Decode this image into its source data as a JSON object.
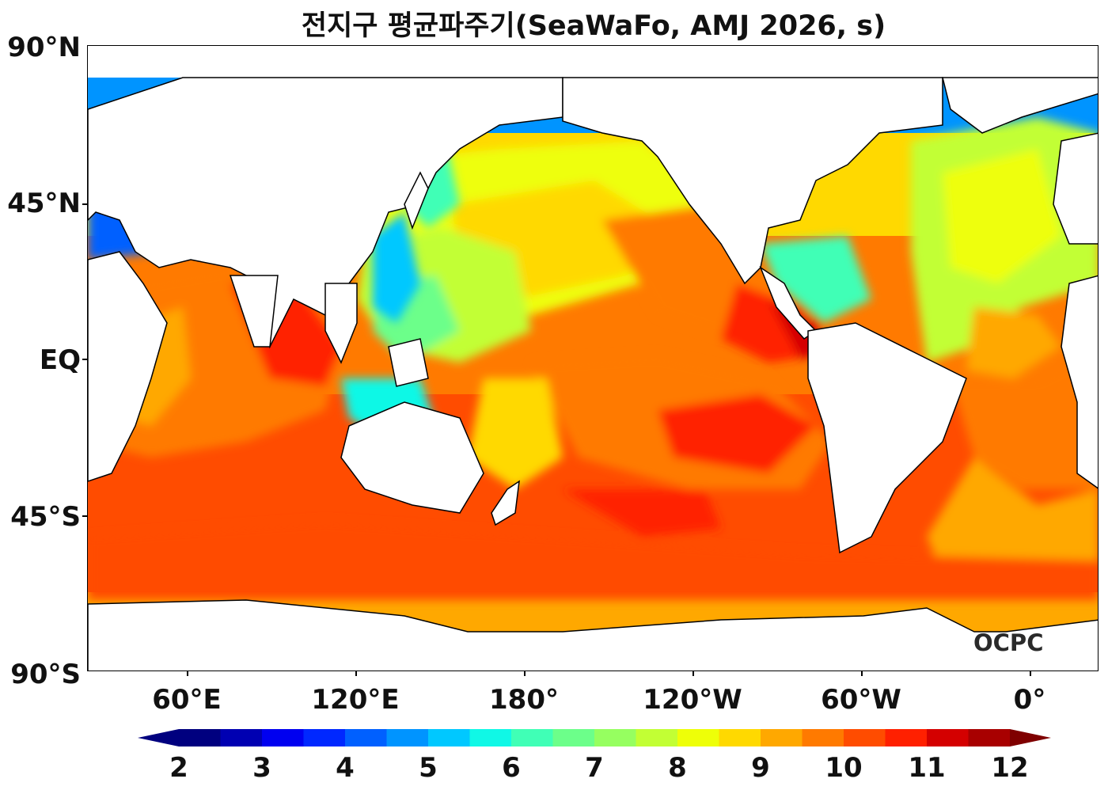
{
  "title": "전지구 평균파주기(SeaWaFo, AMJ 2026, s)",
  "logo_text": "OCPC",
  "map": {
    "projection": "plate carree (centered 180°)",
    "extent_lon": [
      40,
      400
    ],
    "extent_lat": [
      -90,
      90
    ],
    "lat_ticks": [
      {
        "value": 90,
        "label": "90°N"
      },
      {
        "value": 45,
        "label": "45°N"
      },
      {
        "value": 0,
        "label": "EQ"
      },
      {
        "value": -45,
        "label": "45°S"
      },
      {
        "value": -90,
        "label": "90°S"
      }
    ],
    "lon_ticks": [
      {
        "value": 60,
        "label": "60°E"
      },
      {
        "value": 120,
        "label": "120°E"
      },
      {
        "value": 180,
        "label": "180°"
      },
      {
        "value": 240,
        "label": "120°W"
      },
      {
        "value": 300,
        "label": "60°W"
      },
      {
        "value": 360,
        "label": "0°"
      }
    ],
    "land_color": "#ffffff",
    "coastline_color": "#000000"
  },
  "colorbar": {
    "min": 2,
    "max": 12,
    "step": 0.5,
    "extend": "both",
    "tick_labels": [
      "2",
      "3",
      "4",
      "5",
      "6",
      "7",
      "8",
      "9",
      "10",
      "11",
      "12"
    ],
    "colors": [
      "#00007f",
      "#0000b2",
      "#0000f0",
      "#0028ff",
      "#0060ff",
      "#0094ff",
      "#00c8ff",
      "#10f8e6",
      "#40ffb6",
      "#6cff8a",
      "#96ff60",
      "#c2ff34",
      "#eeff08",
      "#ffd900",
      "#ffa800",
      "#ff7a00",
      "#ff4c00",
      "#ff2000",
      "#d40000",
      "#a80000"
    ],
    "under_color": "#00007f",
    "over_color": "#7f0000"
  }
}
